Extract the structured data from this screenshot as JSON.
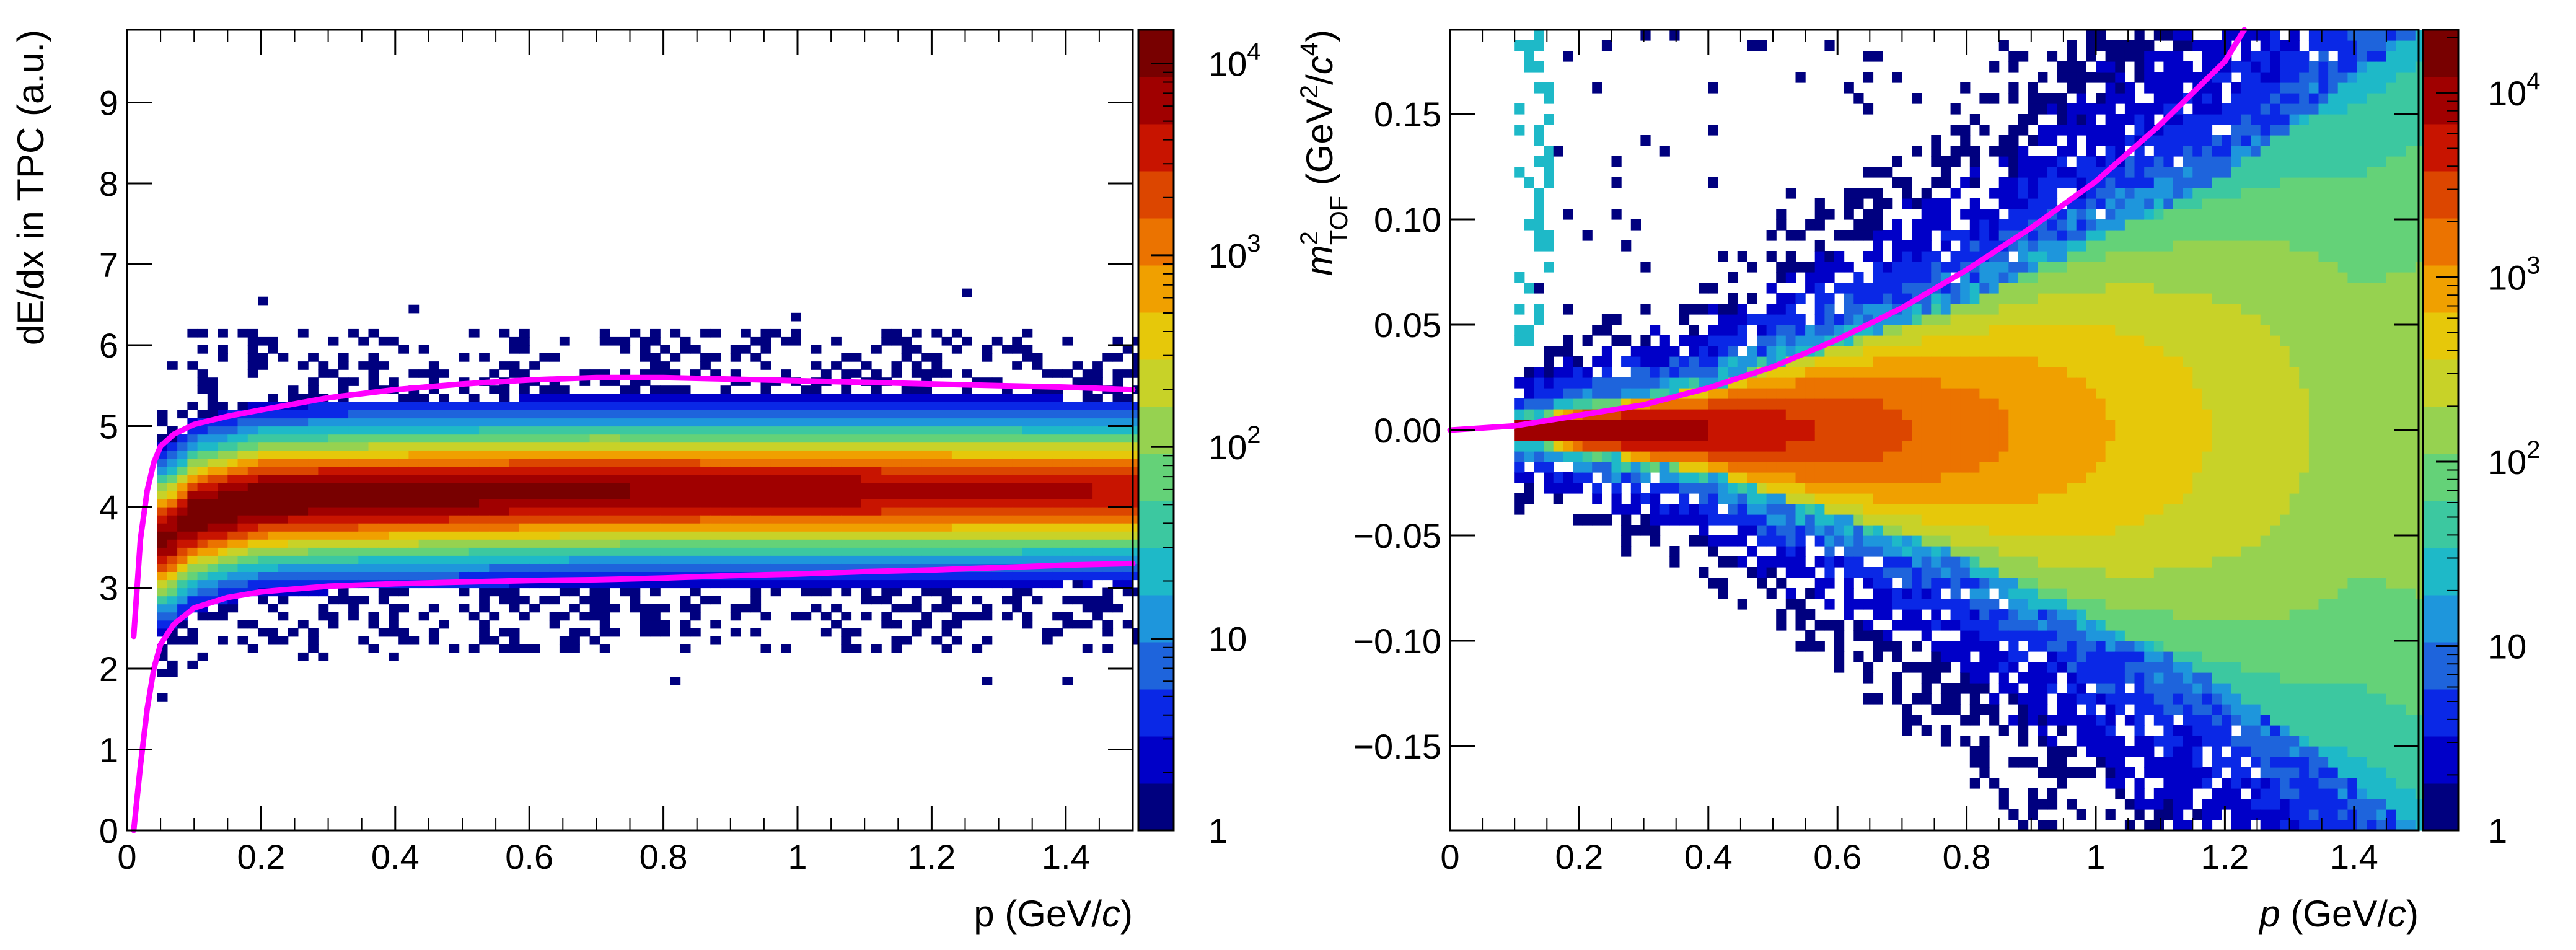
{
  "chart_data": [
    {
      "type": "heatmap",
      "title": "",
      "xlabel": "p (GeV/c)",
      "ylabel": "dE/dx in TPC (a.u.)",
      "xlim": [
        0,
        1.5
      ],
      "ylim": [
        0,
        9.9
      ],
      "x_ticks": [
        "0",
        "0.2",
        "0.4",
        "0.6",
        "0.8",
        "1",
        "1.2",
        "1.4"
      ],
      "y_ticks": [
        "0",
        "1",
        "2",
        "3",
        "4",
        "5",
        "6",
        "7",
        "8",
        "9"
      ],
      "colorbar": {
        "scale": "log",
        "range": [
          1,
          15000
        ],
        "tick_labels": [
          "1",
          "10",
          "10^2",
          "10^3",
          "10^4"
        ],
        "colors": [
          "#00007f",
          "#0000c8",
          "#0a28e6",
          "#1e64dc",
          "#1e96dc",
          "#1eb9c8",
          "#3cc8a0",
          "#64d278",
          "#96d250",
          "#c8d228",
          "#e6c80a",
          "#f0a000",
          "#eb7300",
          "#dc4600",
          "#c81400",
          "#a00000",
          "#780000"
        ]
      },
      "band": {
        "description": "dE/dx ridge of selected particles",
        "center": [
          [
            0.06,
            3.6
          ],
          [
            0.1,
            3.9
          ],
          [
            0.2,
            4.1
          ],
          [
            0.4,
            4.15
          ],
          [
            0.7,
            4.2
          ],
          [
            1.0,
            4.2
          ],
          [
            1.3,
            4.2
          ],
          [
            1.5,
            4.2
          ]
        ],
        "peak_counts": 12000
      },
      "curves": [
        {
          "name": "upper selection cut",
          "color": "#ff00ff",
          "points": [
            [
              0.01,
              2.4
            ],
            [
              0.02,
              3.6
            ],
            [
              0.03,
              4.2
            ],
            [
              0.04,
              4.55
            ],
            [
              0.05,
              4.75
            ],
            [
              0.07,
              4.9
            ],
            [
              0.1,
              5.02
            ],
            [
              0.15,
              5.12
            ],
            [
              0.2,
              5.2
            ],
            [
              0.3,
              5.35
            ],
            [
              0.4,
              5.45
            ],
            [
              0.5,
              5.52
            ],
            [
              0.6,
              5.57
            ],
            [
              0.7,
              5.6
            ],
            [
              0.8,
              5.6
            ],
            [
              0.9,
              5.58
            ],
            [
              1.0,
              5.56
            ],
            [
              1.1,
              5.54
            ],
            [
              1.2,
              5.52
            ],
            [
              1.3,
              5.5
            ],
            [
              1.4,
              5.48
            ],
            [
              1.5,
              5.45
            ]
          ]
        },
        {
          "name": "lower selection cut",
          "color": "#ff00ff",
          "points": [
            [
              0.01,
              0.0
            ],
            [
              0.02,
              0.8
            ],
            [
              0.03,
              1.5
            ],
            [
              0.04,
              2.0
            ],
            [
              0.05,
              2.3
            ],
            [
              0.07,
              2.55
            ],
            [
              0.1,
              2.75
            ],
            [
              0.15,
              2.88
            ],
            [
              0.2,
              2.95
            ],
            [
              0.3,
              3.02
            ],
            [
              0.4,
              3.05
            ],
            [
              0.5,
              3.07
            ],
            [
              0.6,
              3.09
            ],
            [
              0.7,
              3.1
            ],
            [
              0.8,
              3.12
            ],
            [
              0.9,
              3.15
            ],
            [
              1.0,
              3.17
            ],
            [
              1.1,
              3.2
            ],
            [
              1.2,
              3.22
            ],
            [
              1.3,
              3.25
            ],
            [
              1.4,
              3.28
            ],
            [
              1.5,
              3.3
            ]
          ]
        }
      ]
    },
    {
      "type": "heatmap",
      "title": "",
      "xlabel": "p (GeV/c)",
      "ylabel": "m²_TOF (GeV²/c⁴)",
      "xlim": [
        0,
        1.5
      ],
      "ylim": [
        -0.19,
        0.19
      ],
      "x_ticks": [
        "0",
        "0.2",
        "0.4",
        "0.6",
        "0.8",
        "1",
        "1.2",
        "1.4"
      ],
      "y_ticks": [
        "−0.15",
        "−0.10",
        "−0.05",
        "0.00",
        "0.05",
        "0.10",
        "0.15"
      ],
      "colorbar": {
        "scale": "log",
        "range": [
          1,
          22000
        ],
        "tick_labels": [
          "1",
          "10",
          "10^2",
          "10^3",
          "10^4"
        ],
        "colors": [
          "#00007f",
          "#0000c8",
          "#0a28e6",
          "#1e64dc",
          "#1e96dc",
          "#1eb9c8",
          "#3cc8a0",
          "#64d278",
          "#96d250",
          "#c8d228",
          "#e6c80a",
          "#f0a000",
          "#eb7300",
          "#dc4600",
          "#c81400",
          "#a00000",
          "#780000"
        ]
      },
      "band": {
        "description": "m² spread widening with momentum, centred at 0",
        "peak_counts": 20000,
        "half_width_vs_p": [
          [
            0.1,
            0.004
          ],
          [
            0.4,
            0.02
          ],
          [
            0.8,
            0.06
          ],
          [
            1.2,
            0.12
          ],
          [
            1.5,
            0.19
          ]
        ]
      },
      "curves": [
        {
          "name": "upper m² cut",
          "color": "#ff00ff",
          "points": [
            [
              0.0,
              0.0
            ],
            [
              0.1,
              0.002
            ],
            [
              0.2,
              0.007
            ],
            [
              0.3,
              0.012
            ],
            [
              0.4,
              0.02
            ],
            [
              0.5,
              0.03
            ],
            [
              0.6,
              0.043
            ],
            [
              0.7,
              0.058
            ],
            [
              0.8,
              0.076
            ],
            [
              0.9,
              0.096
            ],
            [
              1.0,
              0.118
            ],
            [
              1.1,
              0.145
            ],
            [
              1.2,
              0.175
            ],
            [
              1.23,
              0.19
            ]
          ]
        }
      ]
    }
  ]
}
